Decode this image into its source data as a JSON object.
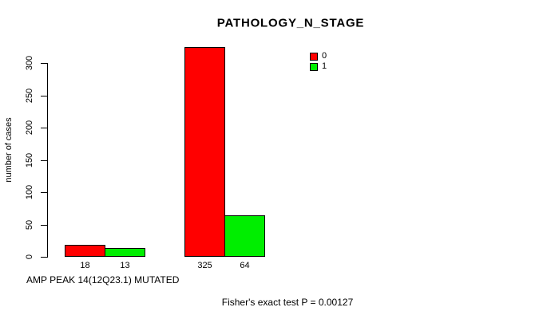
{
  "figure": {
    "background": "#ffffff",
    "text_color": "#000000",
    "axis_color": "#000000"
  },
  "chart_data": {
    "type": "bar",
    "title": "PATHOLOGY_N_STAGE",
    "ylabel": "number of cases",
    "xlabel": "AMP PEAK 14(12Q23.1) MUTATED",
    "annotation": "Fisher's exact test P = 0.00127",
    "categories": [
      "",
      ""
    ],
    "series": [
      {
        "name": "0",
        "color": "#ff0000",
        "values": [
          18,
          325
        ]
      },
      {
        "name": "1",
        "color": "#00ee00",
        "values": [
          13,
          64
        ]
      }
    ],
    "bar_value_labels": [
      "18",
      "13",
      "325",
      "64"
    ],
    "yticks": [
      0,
      50,
      100,
      150,
      200,
      250,
      300
    ],
    "ylim": [
      0,
      300
    ],
    "grid": false,
    "legend_position": "top-right"
  }
}
